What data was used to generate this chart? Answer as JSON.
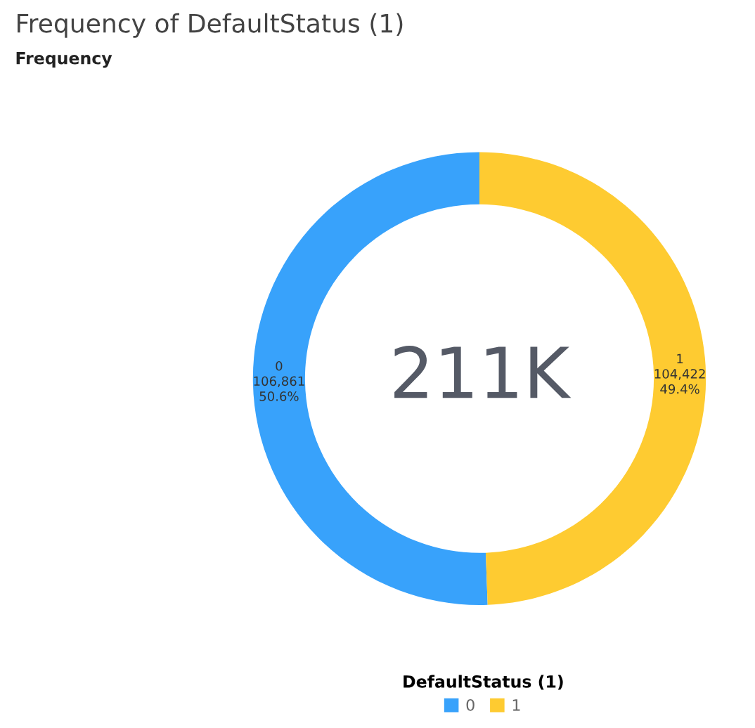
{
  "chart_data": {
    "type": "donut",
    "title": "Frequency of DefaultStatus (1)",
    "subtitle": "Frequency",
    "categories": [
      "0",
      "1"
    ],
    "values": [
      106861,
      104422
    ],
    "colors": [
      "#38a2fb",
      "#fecb31"
    ],
    "value_labels": [
      "0\n106,861\n50.6%",
      "1\n104,422\n49.4%"
    ],
    "annotations": [
      "211K"
    ],
    "legend": "bottom",
    "legend_title": "DefaultStatus (1)"
  }
}
